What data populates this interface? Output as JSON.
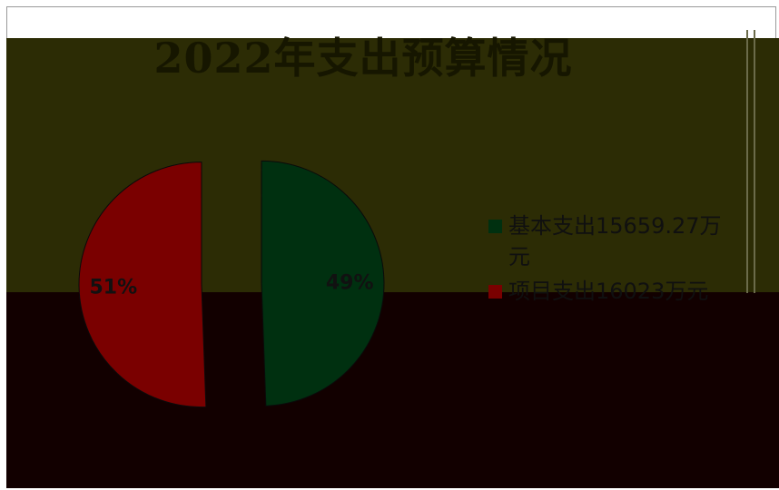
{
  "chart_data": {
    "type": "pie",
    "title": "2022年支出预算情况",
    "slices": [
      {
        "name": "基本支出15659.27万元",
        "value": 15659.27,
        "pct_label": "49%",
        "color": "#003010"
      },
      {
        "name": "项目支出16023万元",
        "value": 16023,
        "pct_label": "51%",
        "color": "#7a0000"
      }
    ],
    "legend_position": "right"
  },
  "colors": {
    "upper_panel": "#2c2c05",
    "lower_panel": "#120000",
    "basic_lower": "#00101a"
  }
}
